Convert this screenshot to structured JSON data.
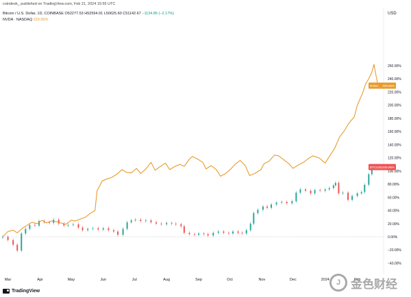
{
  "header": {
    "publish_line": "coindesk_ published on TradingView.com, Feb 21, 2024 15:55 UTC",
    "btc_symbol": "Bitcoin / U.S. Dollar, 1D, COINBASE",
    "btc_open": "O52277.53",
    "btc_high": "H52594.91",
    "btc_low": "L50625.60",
    "btc_close": "C51142.67",
    "btc_change": "−1134.85 (−2.17%)",
    "nvda_symbol": "NVDA · NASDAQ",
    "nvda_value": "229.56%",
    "currency": "USD"
  },
  "footer": {
    "brand": "TradingView",
    "watermark": "金色财经"
  },
  "labels": {
    "nvda_tag": "NVDA",
    "nvda_tag_value": "229.56%",
    "btc_tag": "BTCUSD",
    "btc_tag_value": "105.85%"
  },
  "colors": {
    "nvda_line": "#e89b2b",
    "btc_up": "#26a69a",
    "btc_down": "#ef5350",
    "btc_tag": "#ef5350",
    "zero_line": "#b2b5be",
    "background": "#ffffff"
  },
  "chart_data": {
    "type": "line",
    "ylabel": "",
    "ylim": [
      -28,
      280
    ],
    "y_ticks": [
      "260.00%",
      "240.00%",
      "220.00%",
      "200.00%",
      "180.00%",
      "160.00%",
      "140.00%",
      "120.00%",
      "100.00%",
      "80.00%",
      "60.00%",
      "40.00%",
      "20.00%",
      "0.00%",
      "−20.00%",
      "−40.00%"
    ],
    "y_tick_values": [
      260,
      240,
      220,
      200,
      180,
      160,
      140,
      120,
      100,
      80,
      60,
      40,
      20,
      0,
      -20,
      -40
    ],
    "x_ticks": [
      "Mar",
      "Apr",
      "May",
      "Jun",
      "Jul",
      "Aug",
      "Sep",
      "Oct",
      "Nov",
      "Dec",
      "2024",
      "Feb"
    ],
    "x_tick_values": [
      "2023-03-01",
      "2023-04-01",
      "2023-05-01",
      "2023-06-01",
      "2023-07-01",
      "2023-08-01",
      "2023-09-01",
      "2023-10-01",
      "2023-11-01",
      "2023-12-01",
      "2024-01-01",
      "2024-02-01"
    ],
    "x_range": [
      "2023-02-24",
      "2024-02-25"
    ],
    "series": [
      {
        "name": "NVDA",
        "style": "line",
        "points": [
          [
            "2023-02-24",
            0
          ],
          [
            "2023-03-01",
            8
          ],
          [
            "2023-03-06",
            10
          ],
          [
            "2023-03-10",
            6
          ],
          [
            "2023-03-15",
            13
          ],
          [
            "2023-03-20",
            18
          ],
          [
            "2023-03-24",
            22
          ],
          [
            "2023-03-29",
            20
          ],
          [
            "2023-04-03",
            25
          ],
          [
            "2023-04-07",
            21
          ],
          [
            "2023-04-12",
            24
          ],
          [
            "2023-04-17",
            23
          ],
          [
            "2023-04-21",
            21
          ],
          [
            "2023-04-26",
            19
          ],
          [
            "2023-05-01",
            25
          ],
          [
            "2023-05-05",
            24
          ],
          [
            "2023-05-10",
            27
          ],
          [
            "2023-05-15",
            30
          ],
          [
            "2023-05-19",
            35
          ],
          [
            "2023-05-24",
            40
          ],
          [
            "2023-05-26",
            70
          ],
          [
            "2023-05-31",
            85
          ],
          [
            "2023-06-05",
            88
          ],
          [
            "2023-06-09",
            90
          ],
          [
            "2023-06-14",
            95
          ],
          [
            "2023-06-19",
            102
          ],
          [
            "2023-06-23",
            98
          ],
          [
            "2023-06-28",
            97
          ],
          [
            "2023-07-03",
            104
          ],
          [
            "2023-07-07",
            96
          ],
          [
            "2023-07-12",
            103
          ],
          [
            "2023-07-17",
            113
          ],
          [
            "2023-07-21",
            101
          ],
          [
            "2023-07-26",
            107
          ],
          [
            "2023-07-31",
            112
          ],
          [
            "2023-08-04",
            102
          ],
          [
            "2023-08-09",
            107
          ],
          [
            "2023-08-14",
            110
          ],
          [
            "2023-08-18",
            107
          ],
          [
            "2023-08-23",
            118
          ],
          [
            "2023-08-26",
            122
          ],
          [
            "2023-08-31",
            118
          ],
          [
            "2023-09-05",
            113
          ],
          [
            "2023-09-08",
            103
          ],
          [
            "2023-09-13",
            108
          ],
          [
            "2023-09-18",
            102
          ],
          [
            "2023-09-22",
            92
          ],
          [
            "2023-09-27",
            96
          ],
          [
            "2023-10-02",
            103
          ],
          [
            "2023-10-06",
            110
          ],
          [
            "2023-10-11",
            116
          ],
          [
            "2023-10-16",
            108
          ],
          [
            "2023-10-20",
            93
          ],
          [
            "2023-10-25",
            96
          ],
          [
            "2023-10-31",
            102
          ],
          [
            "2023-11-03",
            111
          ],
          [
            "2023-11-08",
            115
          ],
          [
            "2023-11-13",
            124
          ],
          [
            "2023-11-17",
            123
          ],
          [
            "2023-11-22",
            117
          ],
          [
            "2023-11-27",
            111
          ],
          [
            "2023-12-01",
            104
          ],
          [
            "2023-12-06",
            109
          ],
          [
            "2023-12-11",
            113
          ],
          [
            "2023-12-15",
            118
          ],
          [
            "2023-12-20",
            123
          ],
          [
            "2023-12-26",
            120
          ],
          [
            "2024-01-01",
            112
          ],
          [
            "2024-01-05",
            122
          ],
          [
            "2024-01-10",
            134
          ],
          [
            "2024-01-15",
            152
          ],
          [
            "2024-01-19",
            160
          ],
          [
            "2024-01-24",
            173
          ],
          [
            "2024-01-29",
            182
          ],
          [
            "2024-02-01",
            200
          ],
          [
            "2024-02-06",
            218
          ],
          [
            "2024-02-09",
            232
          ],
          [
            "2024-02-12",
            240
          ],
          [
            "2024-02-15",
            250
          ],
          [
            "2024-02-17",
            262
          ],
          [
            "2024-02-19",
            245
          ],
          [
            "2024-02-21",
            229.56
          ]
        ]
      },
      {
        "name": "BTCUSD",
        "style": "candles",
        "points": [
          [
            "2023-02-24",
            0
          ],
          [
            "2023-03-01",
            -5
          ],
          [
            "2023-03-06",
            -12
          ],
          [
            "2023-03-10",
            -21
          ],
          [
            "2023-03-14",
            5
          ],
          [
            "2023-03-18",
            12
          ],
          [
            "2023-03-22",
            18
          ],
          [
            "2023-03-27",
            17
          ],
          [
            "2023-03-31",
            24
          ],
          [
            "2023-04-05",
            22
          ],
          [
            "2023-04-10",
            21
          ],
          [
            "2023-04-14",
            26
          ],
          [
            "2023-04-19",
            20
          ],
          [
            "2023-04-24",
            17
          ],
          [
            "2023-04-28",
            18
          ],
          [
            "2023-05-03",
            19
          ],
          [
            "2023-05-08",
            14
          ],
          [
            "2023-05-12",
            10
          ],
          [
            "2023-05-17",
            12
          ],
          [
            "2023-05-22",
            13
          ],
          [
            "2023-05-27",
            11
          ],
          [
            "2023-06-01",
            13
          ],
          [
            "2023-06-06",
            10
          ],
          [
            "2023-06-11",
            8
          ],
          [
            "2023-06-15",
            3
          ],
          [
            "2023-06-20",
            12
          ],
          [
            "2023-06-24",
            22
          ],
          [
            "2023-06-28",
            25
          ],
          [
            "2023-07-02",
            26
          ],
          [
            "2023-07-07",
            24
          ],
          [
            "2023-07-12",
            25
          ],
          [
            "2023-07-17",
            22
          ],
          [
            "2023-07-22",
            20
          ],
          [
            "2023-07-27",
            19
          ],
          [
            "2023-08-01",
            21
          ],
          [
            "2023-08-06",
            20
          ],
          [
            "2023-08-10",
            19
          ],
          [
            "2023-08-15",
            16
          ],
          [
            "2023-08-18",
            6
          ],
          [
            "2023-08-23",
            4
          ],
          [
            "2023-08-28",
            3
          ],
          [
            "2023-09-01",
            5
          ],
          [
            "2023-09-06",
            4
          ],
          [
            "2023-09-10",
            2
          ],
          [
            "2023-09-15",
            6
          ],
          [
            "2023-09-20",
            8
          ],
          [
            "2023-09-25",
            6
          ],
          [
            "2023-09-30",
            5
          ],
          [
            "2023-10-04",
            8
          ],
          [
            "2023-10-09",
            6
          ],
          [
            "2023-10-13",
            5
          ],
          [
            "2023-10-17",
            10
          ],
          [
            "2023-10-21",
            20
          ],
          [
            "2023-10-24",
            36
          ],
          [
            "2023-10-28",
            41
          ],
          [
            "2023-11-02",
            46
          ],
          [
            "2023-11-06",
            44
          ],
          [
            "2023-11-10",
            49
          ],
          [
            "2023-11-15",
            52
          ],
          [
            "2023-11-20",
            53
          ],
          [
            "2023-11-25",
            51
          ],
          [
            "2023-11-30",
            54
          ],
          [
            "2023-12-04",
            67
          ],
          [
            "2023-12-08",
            72
          ],
          [
            "2023-12-13",
            70
          ],
          [
            "2023-12-18",
            66
          ],
          [
            "2023-12-22",
            71
          ],
          [
            "2023-12-27",
            70
          ],
          [
            "2024-01-01",
            72
          ],
          [
            "2024-01-05",
            74
          ],
          [
            "2024-01-09",
            78
          ],
          [
            "2024-01-11",
            82
          ],
          [
            "2024-01-14",
            66
          ],
          [
            "2024-01-18",
            67
          ],
          [
            "2024-01-23",
            56
          ],
          [
            "2024-01-27",
            62
          ],
          [
            "2024-02-01",
            66
          ],
          [
            "2024-02-05",
            68
          ],
          [
            "2024-02-08",
            79
          ],
          [
            "2024-02-12",
            95
          ],
          [
            "2024-02-15",
            104
          ],
          [
            "2024-02-19",
            108
          ],
          [
            "2024-02-21",
            105.85
          ]
        ]
      }
    ],
    "grid": false,
    "zero_line": true,
    "legend": "top-left"
  }
}
